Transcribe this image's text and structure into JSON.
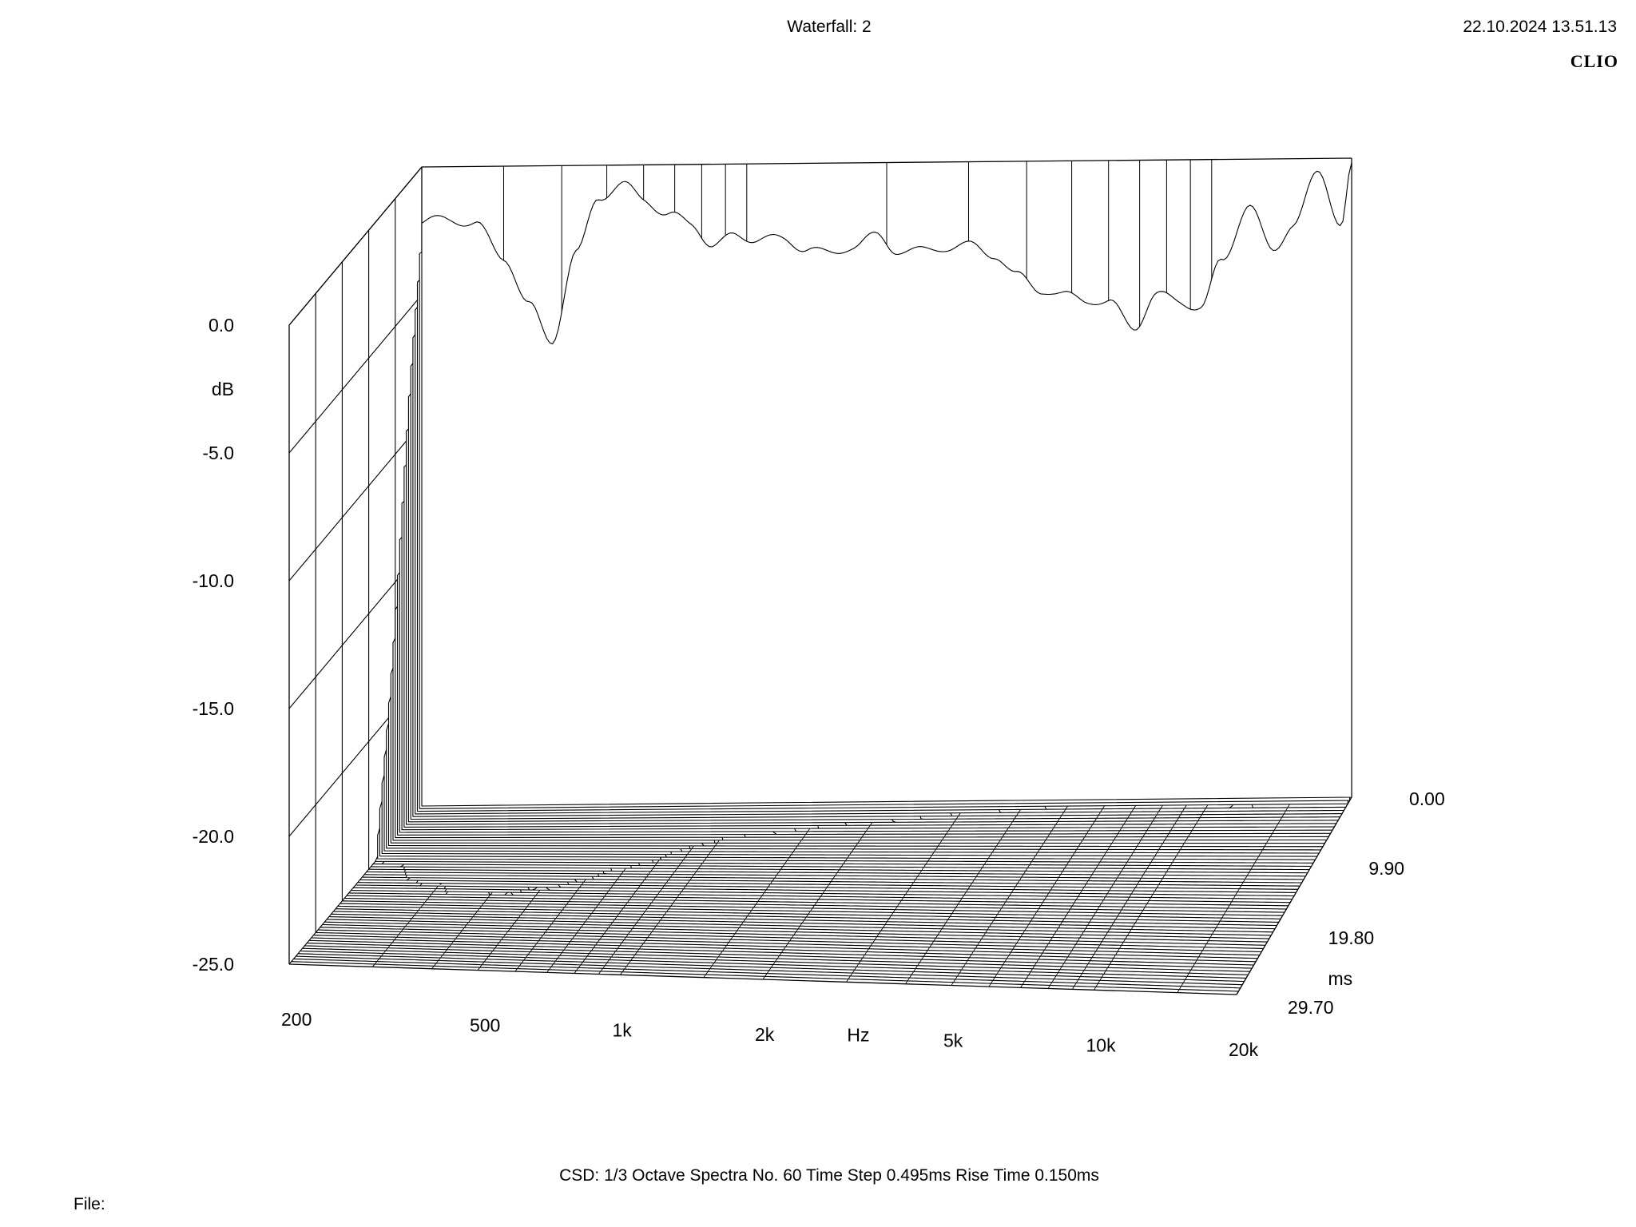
{
  "header": {
    "title": "Waterfall: 2",
    "timestamp": "22.10.2024 13.51.13",
    "brand": "CLIO"
  },
  "footer": {
    "settings": "CSD:   1/3 Octave   Spectra No. 60   Time Step 0.495ms   Rise Time 0.150ms",
    "file_label": "File:"
  },
  "chart_data": {
    "type": "waterfall",
    "title": "Waterfall: 2",
    "x_axis": {
      "label": "Hz",
      "scale": "log",
      "range": [
        200,
        20000
      ],
      "ticks": [
        {
          "value": 200,
          "label": "200"
        },
        {
          "value": 500,
          "label": "500"
        },
        {
          "value": 1000,
          "label": "1k"
        },
        {
          "value": 2000,
          "label": "2k"
        },
        {
          "value": 5000,
          "label": "5k"
        },
        {
          "value": 10000,
          "label": "10k"
        },
        {
          "value": 20000,
          "label": "20k"
        }
      ]
    },
    "y_axis": {
      "label": "dB",
      "range": [
        -25,
        0
      ],
      "ticks": [
        {
          "value": 0,
          "label": "0.0"
        },
        {
          "value": -5,
          "label": "-5.0"
        },
        {
          "value": -10,
          "label": "-10.0"
        },
        {
          "value": -15,
          "label": "-15.0"
        },
        {
          "value": -20,
          "label": "-20.0"
        },
        {
          "value": -25,
          "label": "-25.0"
        }
      ]
    },
    "z_axis": {
      "label": "ms",
      "range": [
        0,
        29.7
      ],
      "ticks": [
        {
          "value": 0,
          "label": "0.00"
        },
        {
          "value": 9.9,
          "label": "9.90"
        },
        {
          "value": 19.8,
          "label": "19.80"
        },
        {
          "value": 29.7,
          "label": "29.70"
        }
      ]
    },
    "spectra_count": 60,
    "time_step_ms": 0.495,
    "rise_time_ms": 0.15,
    "smoothing": "1/3 Octave",
    "spectrum_profile": {
      "freq_hz": [
        200,
        230,
        260,
        300,
        340,
        380,
        430,
        480,
        540,
        600,
        680,
        760,
        850,
        950,
        1050,
        1200,
        1350,
        1500,
        1700,
        1900,
        2100,
        2400,
        2700,
        3000,
        3400,
        3800,
        4300,
        4800,
        5400,
        6000,
        6800,
        7600,
        8500,
        9500,
        10500,
        12000,
        13500,
        15000,
        17000,
        19000,
        20000
      ],
      "initial_db": [
        -2.2,
        -2.0,
        -2.3,
        -3.5,
        -5.5,
        -6.8,
        -3.5,
        -1.2,
        -0.8,
        -1.3,
        -2.0,
        -2.3,
        -3.2,
        -2.8,
        -2.9,
        -3.0,
        -3.3,
        -3.6,
        -3.2,
        -2.9,
        -3.4,
        -3.5,
        -3.3,
        -3.3,
        -3.6,
        -4.5,
        -5.0,
        -5.3,
        -5.4,
        -5.6,
        -6.5,
        -5.3,
        -5.5,
        -5.8,
        -4.0,
        -1.8,
        -3.6,
        -2.5,
        -0.6,
        -2.5,
        -0.3
      ],
      "decay_ms": [
        8,
        9,
        11,
        13,
        15,
        16,
        14,
        12,
        11,
        10,
        9,
        8.5,
        7,
        6,
        5.2,
        4.6,
        4.2,
        3.8,
        3.4,
        3.0,
        3.0,
        2.6,
        2.3,
        2.0,
        1.8,
        1.6,
        1.4,
        1.3,
        1.2,
        1.1,
        1.0,
        1.0,
        1.0,
        1.1,
        1.2,
        1.2,
        1.1,
        1.0,
        0.9,
        0.8,
        0.8
      ]
    }
  }
}
